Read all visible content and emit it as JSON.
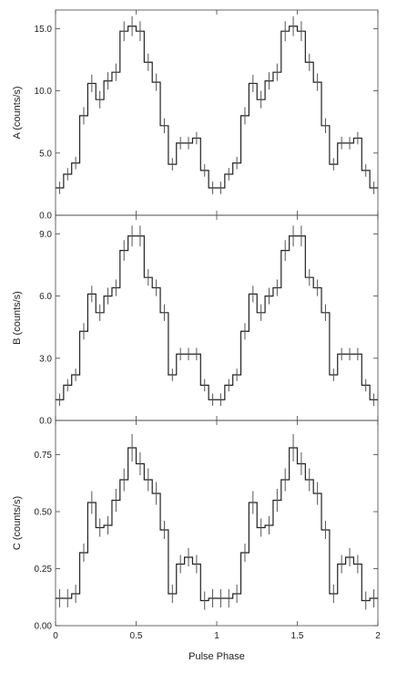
{
  "chart_data": [
    {
      "type": "line",
      "step": true,
      "ylabel": "A (counts/s)",
      "ylim": [
        0,
        16.5
      ],
      "yticks": [
        {
          "value": 0,
          "label": "0.0"
        },
        {
          "value": 5,
          "label": "5.0"
        },
        {
          "value": 10,
          "label": "10.0"
        },
        {
          "value": 15,
          "label": "15.0"
        }
      ],
      "x_bins": [
        0.0,
        0.05,
        0.1,
        0.15,
        0.2,
        0.25,
        0.3,
        0.35,
        0.4,
        0.45,
        0.5,
        0.55,
        0.6,
        0.65,
        0.7,
        0.75,
        0.8,
        0.85,
        0.9,
        0.95
      ],
      "values": [
        2.2,
        3.3,
        4.2,
        8.0,
        10.6,
        9.3,
        10.8,
        11.5,
        14.8,
        15.2,
        14.8,
        12.3,
        10.7,
        7.2,
        4.1,
        5.8,
        5.8,
        6.2,
        3.6,
        2.2
      ],
      "errors": [
        0.5,
        0.5,
        0.5,
        0.7,
        0.7,
        0.7,
        0.7,
        0.7,
        0.8,
        0.8,
        0.8,
        0.7,
        0.7,
        0.6,
        0.5,
        0.5,
        0.5,
        0.5,
        0.5,
        0.5
      ],
      "x_repeat_offset": 1
    },
    {
      "type": "line",
      "step": true,
      "ylabel": "B (counts/s)",
      "ylim": [
        0,
        9.9
      ],
      "yticks": [
        {
          "value": 0,
          "label": "0.0"
        },
        {
          "value": 3,
          "label": "3.0"
        },
        {
          "value": 6,
          "label": "6.0"
        },
        {
          "value": 9,
          "label": "9.0"
        }
      ],
      "x_bins": [
        0.0,
        0.05,
        0.1,
        0.15,
        0.2,
        0.25,
        0.3,
        0.35,
        0.4,
        0.45,
        0.5,
        0.55,
        0.6,
        0.65,
        0.7,
        0.75,
        0.8,
        0.85,
        0.9,
        0.95
      ],
      "values": [
        1.0,
        1.7,
        2.2,
        4.3,
        6.1,
        5.2,
        6.0,
        6.4,
        8.2,
        8.9,
        8.9,
        6.9,
        6.4,
        5.2,
        2.2,
        3.2,
        3.2,
        3.2,
        1.7,
        1.0
      ],
      "errors": [
        0.3,
        0.3,
        0.3,
        0.4,
        0.4,
        0.4,
        0.4,
        0.4,
        0.5,
        0.5,
        0.5,
        0.4,
        0.4,
        0.4,
        0.3,
        0.3,
        0.3,
        0.3,
        0.3,
        0.3
      ],
      "x_repeat_offset": 1
    },
    {
      "type": "line",
      "step": true,
      "ylabel": "C (counts/s)",
      "ylim": [
        0,
        0.9
      ],
      "yticks": [
        {
          "value": 0,
          "label": "0.00"
        },
        {
          "value": 0.25,
          "label": "0.25"
        },
        {
          "value": 0.5,
          "label": "0.50"
        },
        {
          "value": 0.75,
          "label": "0.75"
        }
      ],
      "x_bins": [
        0.0,
        0.05,
        0.1,
        0.15,
        0.2,
        0.25,
        0.3,
        0.35,
        0.4,
        0.45,
        0.5,
        0.55,
        0.6,
        0.65,
        0.7,
        0.75,
        0.8,
        0.85,
        0.9,
        0.95
      ],
      "values": [
        0.12,
        0.12,
        0.14,
        0.32,
        0.54,
        0.43,
        0.44,
        0.55,
        0.64,
        0.78,
        0.71,
        0.64,
        0.58,
        0.42,
        0.14,
        0.27,
        0.3,
        0.27,
        0.11,
        0.12
      ],
      "errors": [
        0.04,
        0.04,
        0.04,
        0.04,
        0.05,
        0.04,
        0.04,
        0.05,
        0.05,
        0.06,
        0.05,
        0.05,
        0.05,
        0.04,
        0.04,
        0.04,
        0.04,
        0.04,
        0.04,
        0.04
      ],
      "x_repeat_offset": 1
    }
  ],
  "xaxis": {
    "label": "Pulse Phase",
    "xlim": [
      0,
      2
    ],
    "ticks": [
      {
        "value": 0,
        "label": "0"
      },
      {
        "value": 0.5,
        "label": "0.5"
      },
      {
        "value": 1,
        "label": "1"
      },
      {
        "value": 1.5,
        "label": "1.5"
      },
      {
        "value": 2,
        "label": "2"
      }
    ]
  },
  "colors": {
    "line": "#222222",
    "error_bar": "#555555",
    "axis": "#444444"
  }
}
